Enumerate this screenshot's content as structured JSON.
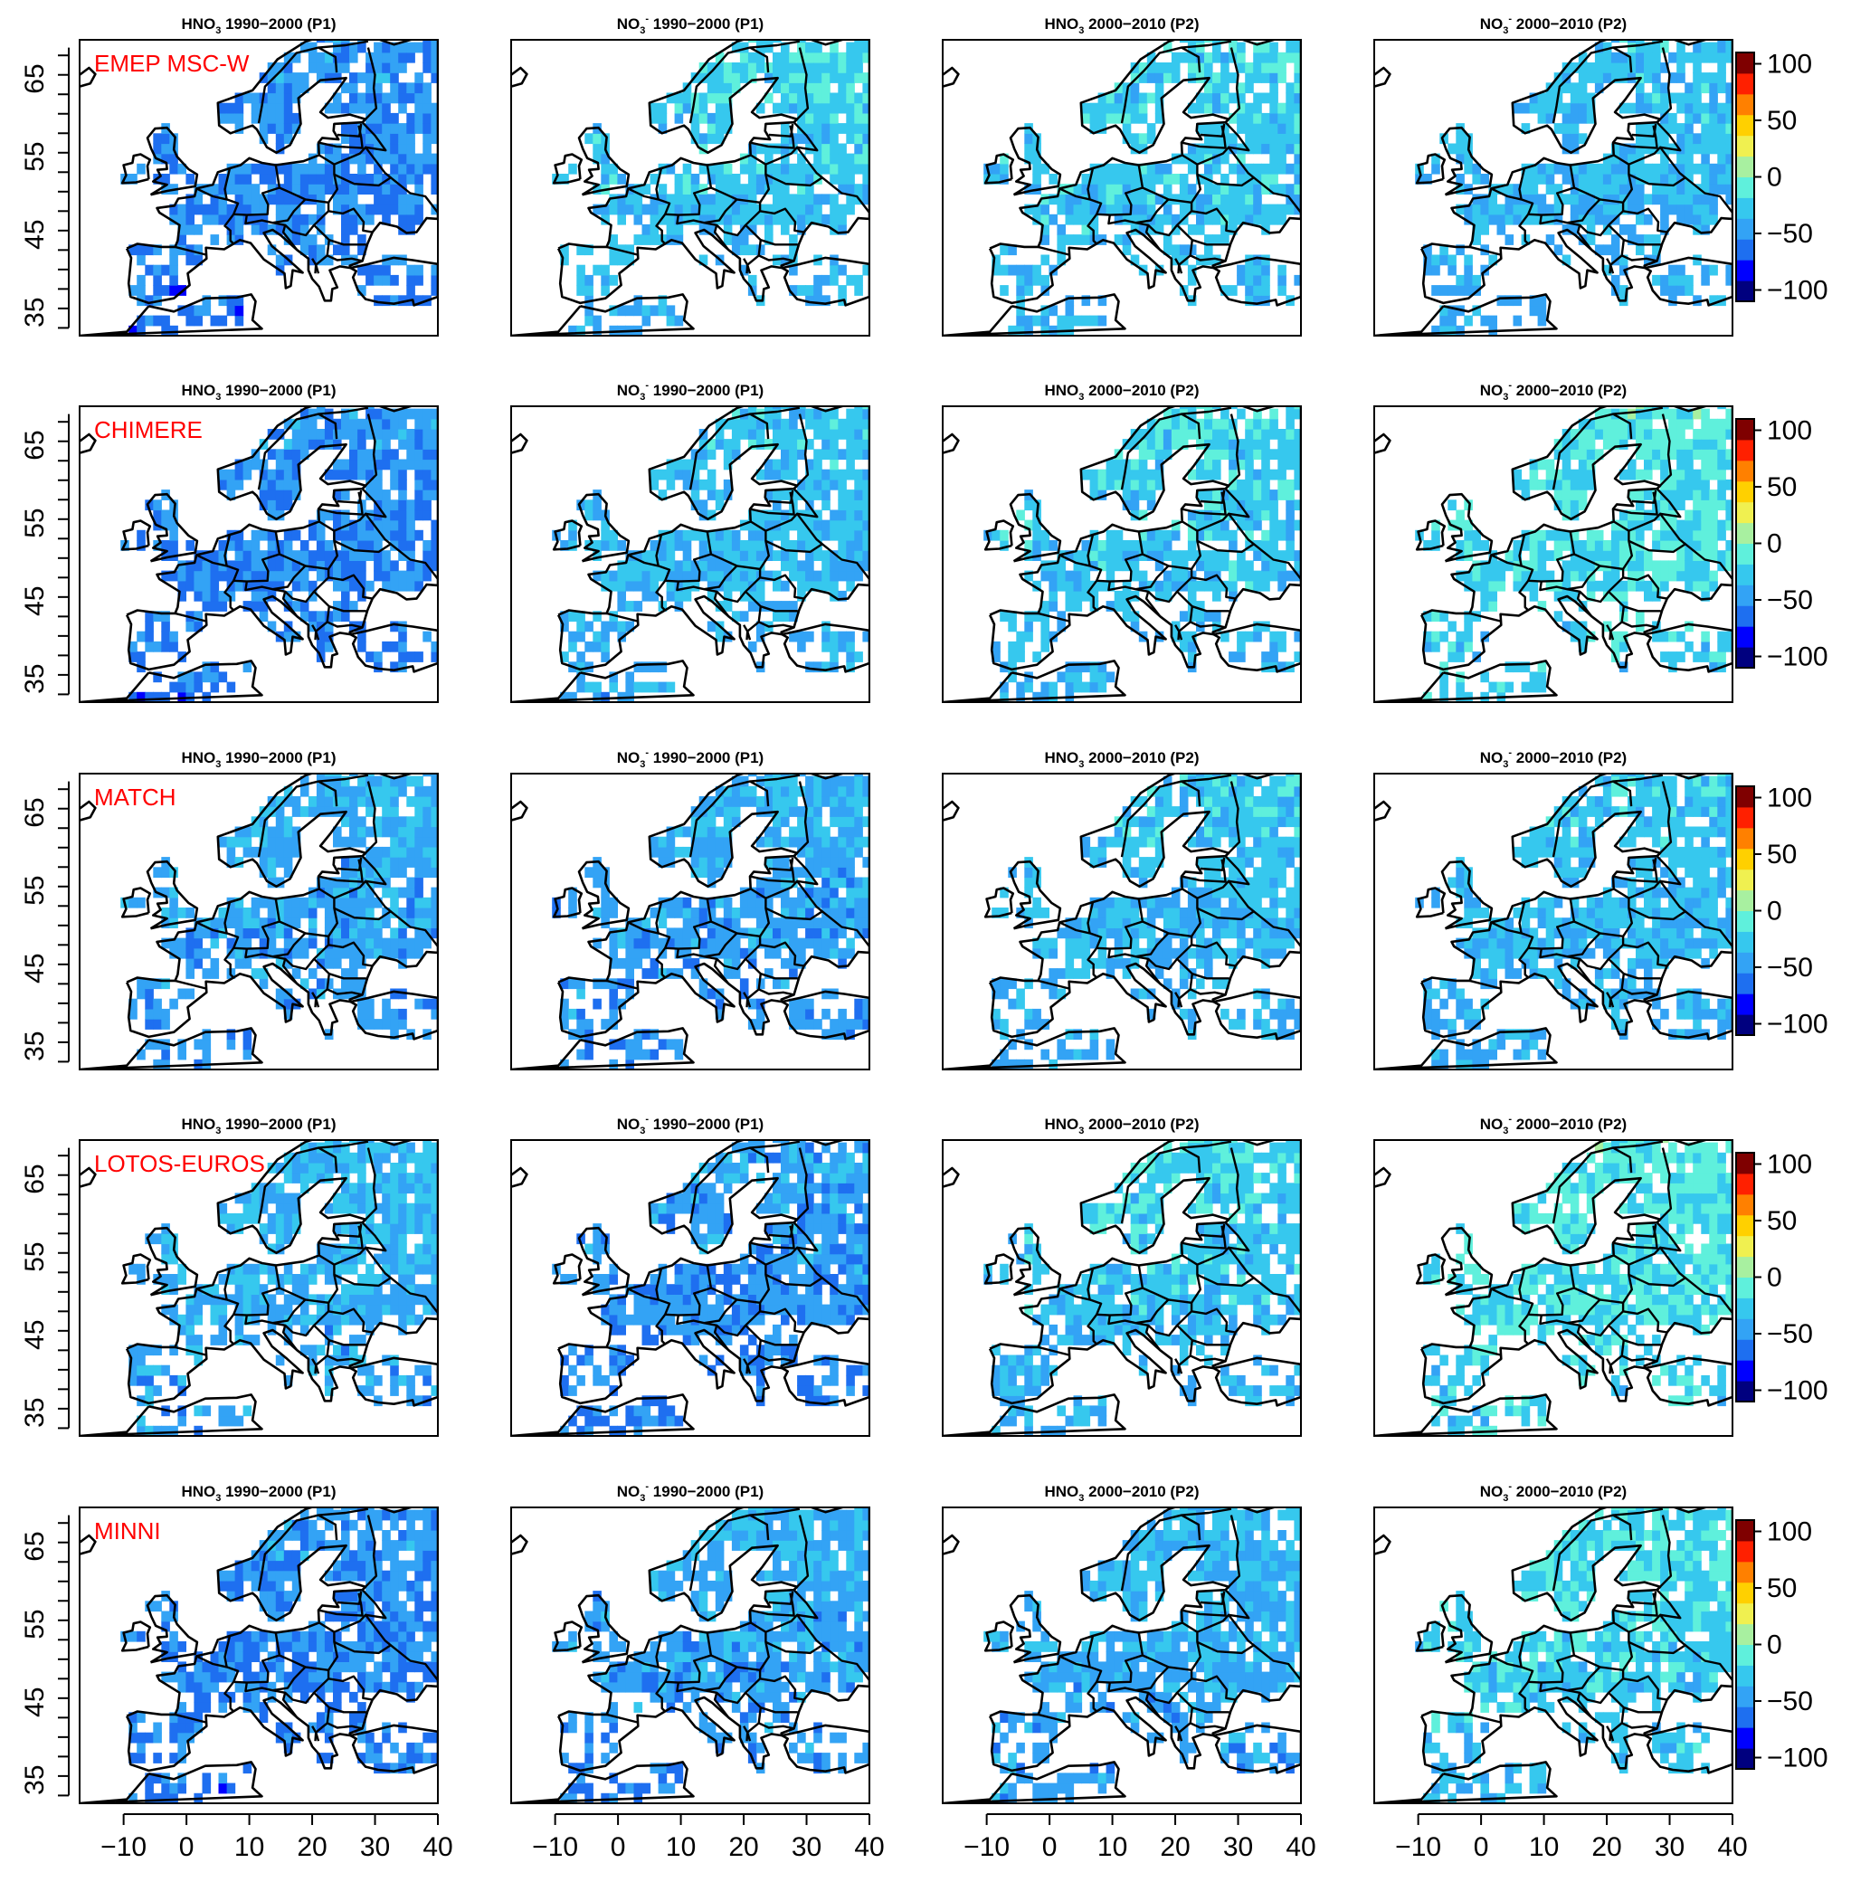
{
  "chart_data": {
    "type": "heatmap",
    "description_free": true,
    "layout": {
      "rows": 5,
      "cols": 4
    },
    "models": [
      "EMEP MSC-W",
      "CHIMERE",
      "MATCH",
      "LOTOS-EUROS",
      "MINNI"
    ],
    "panel_titles": [
      {
        "species": "HNO",
        "sub": "3",
        "sup": "",
        "period": " 1990−2000 (P1)"
      },
      {
        "species": "NO",
        "sub": "3",
        "sup": "-",
        "period": " 1990−2000 (P1)"
      },
      {
        "species": "HNO",
        "sub": "3",
        "sup": "",
        "period": " 2000−2010 (P2)"
      },
      {
        "species": "NO",
        "sub": "3",
        "sup": "-",
        "period": " 2000−2010 (P2)"
      }
    ],
    "x_ticks": [
      "−10",
      "0",
      "10",
      "20",
      "30",
      "40"
    ],
    "x_tick_values": [
      -10,
      0,
      10,
      20,
      30,
      40
    ],
    "y_ticks": [
      "35",
      "45",
      "55",
      "65"
    ],
    "y_tick_values": [
      35,
      45,
      55,
      65
    ],
    "xlim": [
      -17,
      40
    ],
    "ylim": [
      32,
      70
    ],
    "colorbar": {
      "ticks": [
        "100",
        "50",
        "0",
        "−50",
        "−100"
      ],
      "tick_values": [
        100,
        50,
        0,
        -50,
        -100
      ],
      "range": [
        -110,
        110
      ],
      "colors": [
        "#00007f",
        "#0000ff",
        "#1e6ff0",
        "#33a3f5",
        "#36c8ee",
        "#5ff0dc",
        "#a8f0a0",
        "#f0f050",
        "#ffd000",
        "#ff8000",
        "#ff2000",
        "#7f0000"
      ]
    },
    "panel_mean_values": [
      [
        -55,
        -30,
        -30,
        -35
      ],
      [
        -55,
        -35,
        -30,
        -20
      ],
      [
        -45,
        -45,
        -35,
        -35
      ],
      [
        -40,
        -50,
        -30,
        -20
      ],
      [
        -55,
        -45,
        -40,
        -25
      ]
    ]
  }
}
